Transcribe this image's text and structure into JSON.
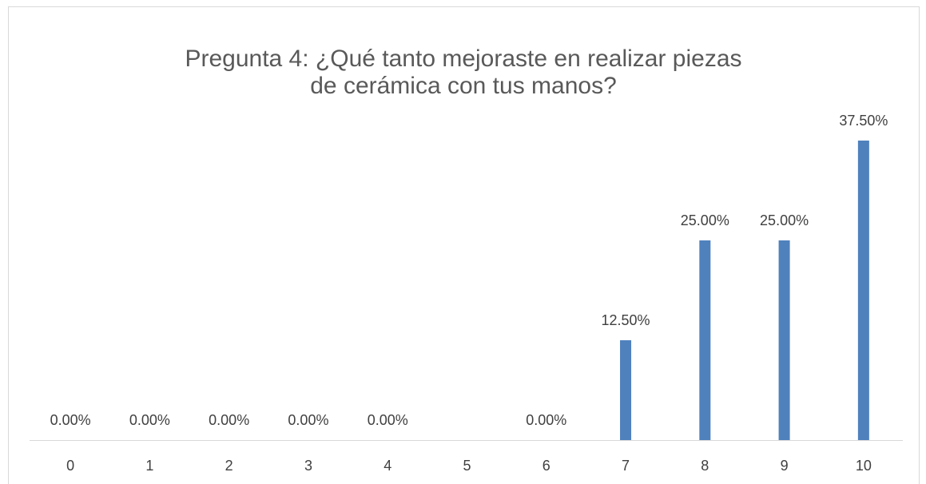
{
  "chart_data": {
    "type": "bar",
    "title": "Pregunta 4: ¿Qué tanto mejoraste en realizar piezas de cerámica con tus manos?",
    "categories": [
      "0",
      "1",
      "2",
      "3",
      "4",
      "5",
      "6",
      "7",
      "8",
      "9",
      "10"
    ],
    "values": [
      0,
      0,
      0,
      0,
      0,
      null,
      0,
      12.5,
      25,
      25,
      37.5
    ],
    "value_labels": [
      "0.00%",
      "0.00%",
      "0.00%",
      "0.00%",
      "0.00%",
      null,
      "0.00%",
      "12.50%",
      "25.00%",
      "25.00%",
      "37.50%"
    ],
    "color": "#4f81bd"
  }
}
